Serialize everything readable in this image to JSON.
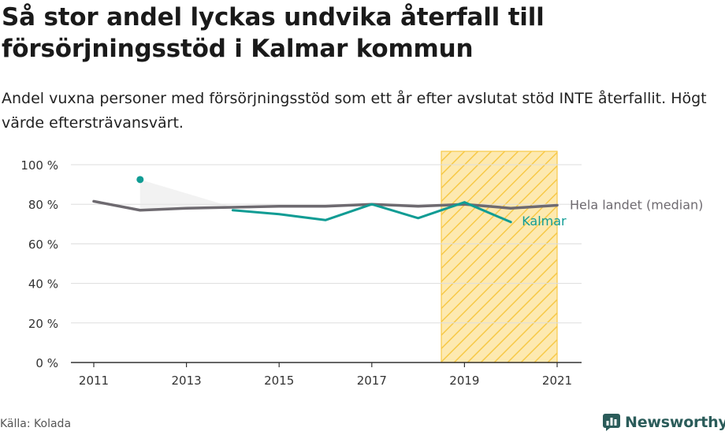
{
  "header": {
    "title": "Så stor andel lyckas undvika återfall till försörjningsstöd i Kalmar kommun",
    "subtitle": "Andel vuxna personer med försörjningsstöd som ett år efter avslutat stöd INTE återfallit. Högt värde eftersträvansvärt."
  },
  "footer": {
    "source": "Källa: Kolada",
    "brand": "Newsworthy",
    "brand_icon": "newsworthy-logo-icon"
  },
  "colors": {
    "kalmar": "#109c94",
    "national": "#6e6a70",
    "highlight_fill": "#fde9b0",
    "highlight_stroke": "#f7c948",
    "grid": "#dddddd",
    "brand": "#2b5c5a"
  },
  "chart_data": {
    "type": "line",
    "x": [
      2011,
      2012,
      2013,
      2014,
      2015,
      2016,
      2017,
      2018,
      2019,
      2020,
      2021
    ],
    "xticks": [
      2011,
      2013,
      2015,
      2017,
      2019,
      2021
    ],
    "ylim": [
      0,
      100
    ],
    "yticks": [
      0,
      20,
      40,
      60,
      80,
      100
    ],
    "ytick_labels": [
      "0 %",
      "20 %",
      "40 %",
      "60 %",
      "80 %",
      "100 %"
    ],
    "grid": true,
    "highlight_range": [
      2018.5,
      2021
    ],
    "series": [
      {
        "name": "Hela landet (median)",
        "values": [
          81.5,
          77,
          78,
          78.5,
          79,
          79,
          80,
          79,
          80,
          78,
          79.5
        ]
      },
      {
        "name": "Kalmar",
        "values": [
          null,
          92.5,
          null,
          77,
          75,
          72,
          80,
          73,
          81,
          71,
          null
        ]
      }
    ]
  }
}
